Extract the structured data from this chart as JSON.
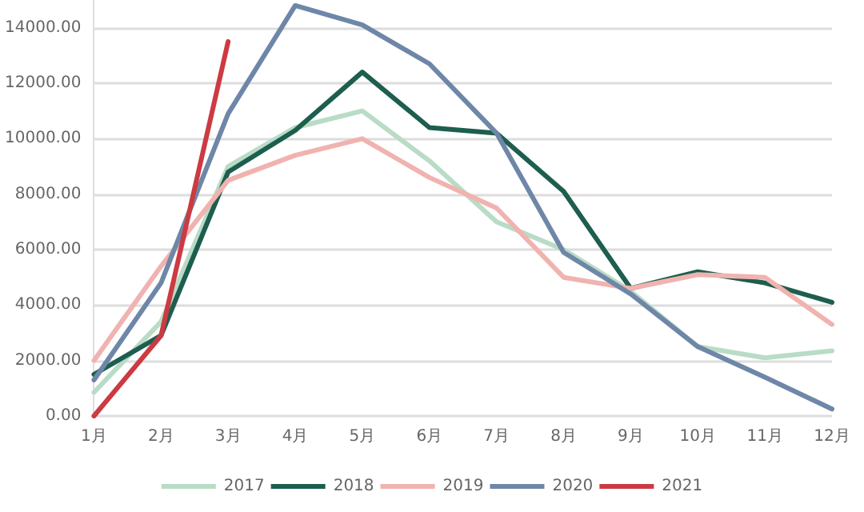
{
  "chart_data": {
    "type": "line",
    "categories": [
      "1月",
      "2月",
      "3月",
      "4月",
      "5月",
      "6月",
      "7月",
      "8月",
      "9月",
      "10月",
      "11月",
      "12月"
    ],
    "series": [
      {
        "name": "2017",
        "color": "#b9dcc6",
        "values": [
          850,
          3400,
          9000,
          10400,
          11000,
          9200,
          7000,
          6000,
          4500,
          2500,
          2100,
          2350
        ]
      },
      {
        "name": "2018",
        "color": "#1d5e4f",
        "values": [
          1500,
          2900,
          8800,
          10300,
          12400,
          10400,
          10200,
          8100,
          4600,
          5200,
          4800,
          4100
        ]
      },
      {
        "name": "2019",
        "color": "#f0b3b0",
        "values": [
          2000,
          5400,
          8500,
          9400,
          10000,
          8600,
          7500,
          5000,
          4600,
          5100,
          5000,
          3300
        ]
      },
      {
        "name": "2020",
        "color": "#6e87a8",
        "values": [
          1300,
          4800,
          10900,
          14800,
          14100,
          12700,
          10200,
          5900,
          4400,
          2500,
          1400,
          250
        ]
      },
      {
        "name": "2021",
        "color": "#cc3a42",
        "values": [
          0,
          2900,
          13500,
          null,
          null,
          null,
          null,
          null,
          null,
          null,
          null,
          null
        ]
      }
    ],
    "ylim": [
      0,
      15000
    ],
    "yticks": [
      {
        "value": 0,
        "label": "0.00"
      },
      {
        "value": 2000,
        "label": "2000.00"
      },
      {
        "value": 4000,
        "label": "4000.00"
      },
      {
        "value": 6000,
        "label": "6000.00"
      },
      {
        "value": 8000,
        "label": "8000.00"
      },
      {
        "value": 10000,
        "label": "10000.00"
      },
      {
        "value": 12000,
        "label": "12000.00"
      },
      {
        "value": 14000,
        "label": "14000.00"
      }
    ],
    "grid": "y",
    "legend": "bottom",
    "marker": "none",
    "line_style": "solid"
  }
}
